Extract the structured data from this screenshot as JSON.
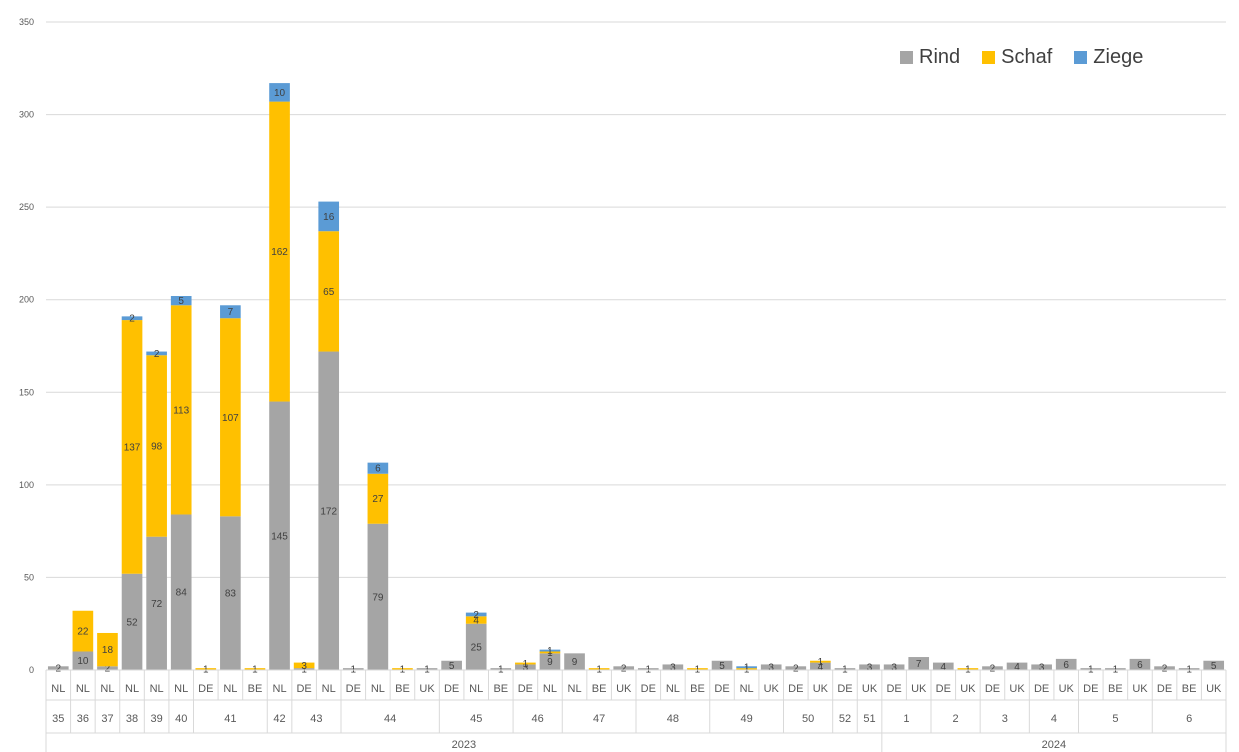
{
  "colors": {
    "Rind": "#a5a5a5",
    "Schaf": "#ffc000",
    "Ziege": "#5b9bd5",
    "grid": "#d9d9d9",
    "axis_text": "#595959",
    "label_text": "#404040"
  },
  "chart_data": {
    "type": "bar",
    "stacked": true,
    "title": "",
    "xlabel": "",
    "ylabel": "",
    "ylim": [
      0,
      350
    ],
    "yticks": [
      0,
      50,
      100,
      150,
      200,
      250,
      300,
      350
    ],
    "grid": true,
    "legend_position": "top-right",
    "series": [
      {
        "name": "Rind",
        "color": "#a5a5a5"
      },
      {
        "name": "Schaf",
        "color": "#ffc000"
      },
      {
        "name": "Ziege",
        "color": "#5b9bd5"
      }
    ],
    "bars": [
      {
        "country": "NL",
        "Rind": 2,
        "Schaf": 0,
        "Ziege": 0
      },
      {
        "country": "NL",
        "Rind": 10,
        "Schaf": 22,
        "Ziege": 0
      },
      {
        "country": "NL",
        "Rind": 2,
        "Schaf": 18,
        "Ziege": 0
      },
      {
        "country": "NL",
        "Rind": 52,
        "Schaf": 137,
        "Ziege": 2
      },
      {
        "country": "NL",
        "Rind": 72,
        "Schaf": 98,
        "Ziege": 2
      },
      {
        "country": "NL",
        "Rind": 84,
        "Schaf": 113,
        "Ziege": 5
      },
      {
        "country": "DE",
        "Rind": 0,
        "Schaf": 1,
        "Ziege": 0
      },
      {
        "country": "NL",
        "Rind": 83,
        "Schaf": 107,
        "Ziege": 7
      },
      {
        "country": "BE",
        "Rind": 0,
        "Schaf": 1,
        "Ziege": 0
      },
      {
        "country": "NL",
        "Rind": 145,
        "Schaf": 162,
        "Ziege": 10
      },
      {
        "country": "DE",
        "Rind": 1,
        "Schaf": 3,
        "Ziege": 0
      },
      {
        "country": "NL",
        "Rind": 172,
        "Schaf": 65,
        "Ziege": 16
      },
      {
        "country": "DE",
        "Rind": 1,
        "Schaf": 0,
        "Ziege": 0
      },
      {
        "country": "NL",
        "Rind": 79,
        "Schaf": 27,
        "Ziege": 6
      },
      {
        "country": "BE",
        "Rind": 0,
        "Schaf": 1,
        "Ziege": 0
      },
      {
        "country": "UK",
        "Rind": 1,
        "Schaf": 0,
        "Ziege": 0
      },
      {
        "country": "DE",
        "Rind": 5,
        "Schaf": 0,
        "Ziege": 0
      },
      {
        "country": "NL",
        "Rind": 25,
        "Schaf": 4,
        "Ziege": 2
      },
      {
        "country": "BE",
        "Rind": 1,
        "Schaf": 0,
        "Ziege": 0
      },
      {
        "country": "DE",
        "Rind": 3,
        "Schaf": 1,
        "Ziege": 0
      },
      {
        "country": "NL",
        "Rind": 9,
        "Schaf": 1,
        "Ziege": 1
      },
      {
        "country": "NL",
        "Rind": 9,
        "Schaf": 0,
        "Ziege": 0
      },
      {
        "country": "BE",
        "Rind": 0,
        "Schaf": 1,
        "Ziege": 0
      },
      {
        "country": "UK",
        "Rind": 2,
        "Schaf": 0,
        "Ziege": 0
      },
      {
        "country": "DE",
        "Rind": 1,
        "Schaf": 0,
        "Ziege": 0
      },
      {
        "country": "NL",
        "Rind": 3,
        "Schaf": 0,
        "Ziege": 0
      },
      {
        "country": "BE",
        "Rind": 0,
        "Schaf": 1,
        "Ziege": 0
      },
      {
        "country": "DE",
        "Rind": 5,
        "Schaf": 0,
        "Ziege": 0
      },
      {
        "country": "NL",
        "Rind": 0,
        "Schaf": 1,
        "Ziege": 1
      },
      {
        "country": "UK",
        "Rind": 3,
        "Schaf": 0,
        "Ziege": 0
      },
      {
        "country": "DE",
        "Rind": 2,
        "Schaf": 0,
        "Ziege": 0
      },
      {
        "country": "UK",
        "Rind": 4,
        "Schaf": 1,
        "Ziege": 0
      },
      {
        "country": "DE",
        "Rind": 1,
        "Schaf": 0,
        "Ziege": 0
      },
      {
        "country": "UK",
        "Rind": 3,
        "Schaf": 0,
        "Ziege": 0
      },
      {
        "country": "DE",
        "Rind": 3,
        "Schaf": 0,
        "Ziege": 0
      },
      {
        "country": "UK",
        "Rind": 7,
        "Schaf": 0,
        "Ziege": 0
      },
      {
        "country": "DE",
        "Rind": 4,
        "Schaf": 0,
        "Ziege": 0
      },
      {
        "country": "UK",
        "Rind": 0,
        "Schaf": 1,
        "Ziege": 0
      },
      {
        "country": "DE",
        "Rind": 2,
        "Schaf": 0,
        "Ziege": 0
      },
      {
        "country": "UK",
        "Rind": 4,
        "Schaf": 0,
        "Ziege": 0
      },
      {
        "country": "DE",
        "Rind": 3,
        "Schaf": 0,
        "Ziege": 0
      },
      {
        "country": "UK",
        "Rind": 6,
        "Schaf": 0,
        "Ziege": 0
      },
      {
        "country": "DE",
        "Rind": 1,
        "Schaf": 0,
        "Ziege": 0
      },
      {
        "country": "BE",
        "Rind": 1,
        "Schaf": 0,
        "Ziege": 0
      },
      {
        "country": "UK",
        "Rind": 6,
        "Schaf": 0,
        "Ziege": 0
      },
      {
        "country": "DE",
        "Rind": 2,
        "Schaf": 0,
        "Ziege": 0
      },
      {
        "country": "BE",
        "Rind": 1,
        "Schaf": 0,
        "Ziege": 0
      },
      {
        "country": "UK",
        "Rind": 5,
        "Schaf": 0,
        "Ziege": 0
      }
    ],
    "week_groups": [
      {
        "label": "35",
        "count": 1
      },
      {
        "label": "36",
        "count": 1
      },
      {
        "label": "37",
        "count": 1
      },
      {
        "label": "38",
        "count": 1
      },
      {
        "label": "39",
        "count": 1
      },
      {
        "label": "40",
        "count": 1
      },
      {
        "label": "41",
        "count": 3
      },
      {
        "label": "42",
        "count": 1
      },
      {
        "label": "43",
        "count": 2
      },
      {
        "label": "44",
        "count": 4
      },
      {
        "label": "45",
        "count": 3
      },
      {
        "label": "46",
        "count": 2
      },
      {
        "label": "47",
        "count": 3
      },
      {
        "label": "48",
        "count": 3
      },
      {
        "label": "49",
        "count": 3
      },
      {
        "label": "50",
        "count": 2
      },
      {
        "label": "52",
        "count": 1
      },
      {
        "label": "51",
        "count": 1
      },
      {
        "label": "1",
        "count": 2
      },
      {
        "label": "2",
        "count": 2
      },
      {
        "label": "3",
        "count": 2
      },
      {
        "label": "4",
        "count": 2
      },
      {
        "label": "5",
        "count": 3
      },
      {
        "label": "6",
        "count": 3
      }
    ],
    "year_groups": [
      {
        "label": "2023",
        "count": 34
      },
      {
        "label": "2024",
        "count": 14
      }
    ]
  }
}
